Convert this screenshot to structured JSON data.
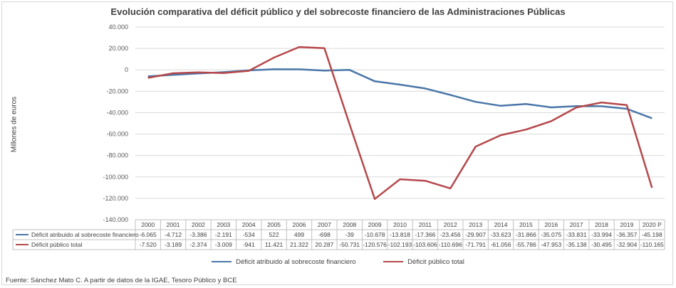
{
  "chart_data": {
    "type": "line",
    "title": "Evolución comparativa del déficit público y del sobrecoste financiero de las Administraciones Públicas",
    "ylabel": "Millones de euros",
    "xlabel": "",
    "ylim": [
      -140000,
      40000
    ],
    "yticks": [
      40000,
      20000,
      0,
      -20000,
      -40000,
      -60000,
      -80000,
      -100000,
      -120000,
      -140000
    ],
    "ytick_labels": [
      "40.000",
      "20.000",
      "0",
      "-20.000",
      "-40.000",
      "-60.000",
      "-80.000",
      "-100.000",
      "-120.000",
      "-140.000"
    ],
    "grid": true,
    "legend_position": "bottom",
    "categories": [
      "2000",
      "2001",
      "2002",
      "2003",
      "2004",
      "2005",
      "2006",
      "2007",
      "2008",
      "2009",
      "2010",
      "2011",
      "2012",
      "2013",
      "2014",
      "2015",
      "2016",
      "2017",
      "2018",
      "2019",
      "2020 P"
    ],
    "series": [
      {
        "name": "Déficit atribuido al sobrecoste financiero",
        "color": "#4a76a8",
        "values": [
          -6065,
          -4712,
          -3386,
          -2191,
          -534,
          522,
          499,
          -698,
          -39,
          -10678,
          -13818,
          -17366,
          -23456,
          -29907,
          -33623,
          -31866,
          -35075,
          -33831,
          -33994,
          -36357,
          -45198
        ],
        "labels": [
          "-6.065",
          "-4.712",
          "-3.386",
          "-2.191",
          "-534",
          "522",
          "499",
          "-698",
          "-39",
          "-10.678",
          "-13.818",
          "-17.366",
          "-23.456",
          "-29.907",
          "-33.623",
          "-31.866",
          "-35.075",
          "-33.831",
          "-33.994",
          "-36.357",
          "-45.198"
        ]
      },
      {
        "name": "Déficit público total",
        "color": "#b5484b",
        "values": [
          -7520,
          -3189,
          -2374,
          -3009,
          -941,
          11421,
          21322,
          20287,
          -50731,
          -120576,
          -102193,
          -103606,
          -110696,
          -71791,
          -61056,
          -55786,
          -47953,
          -35138,
          -30495,
          -32904,
          -110165
        ],
        "labels": [
          "-7.520",
          "-3.189",
          "-2.374",
          "-3.009",
          "-941",
          "11.421",
          "21.322",
          "20.287",
          "-50.731",
          "-120.576",
          "-102.193",
          "-103.606",
          "-110.696",
          "-71.791",
          "-61.056",
          "-55.786",
          "-47.953",
          "-35.138",
          "-30.495",
          "-32.904",
          "-110.165"
        ]
      }
    ]
  },
  "source": "Fuente: Sánchez Mato C.  A partir de datos de la IGAE, Tesoro Público y BCE"
}
